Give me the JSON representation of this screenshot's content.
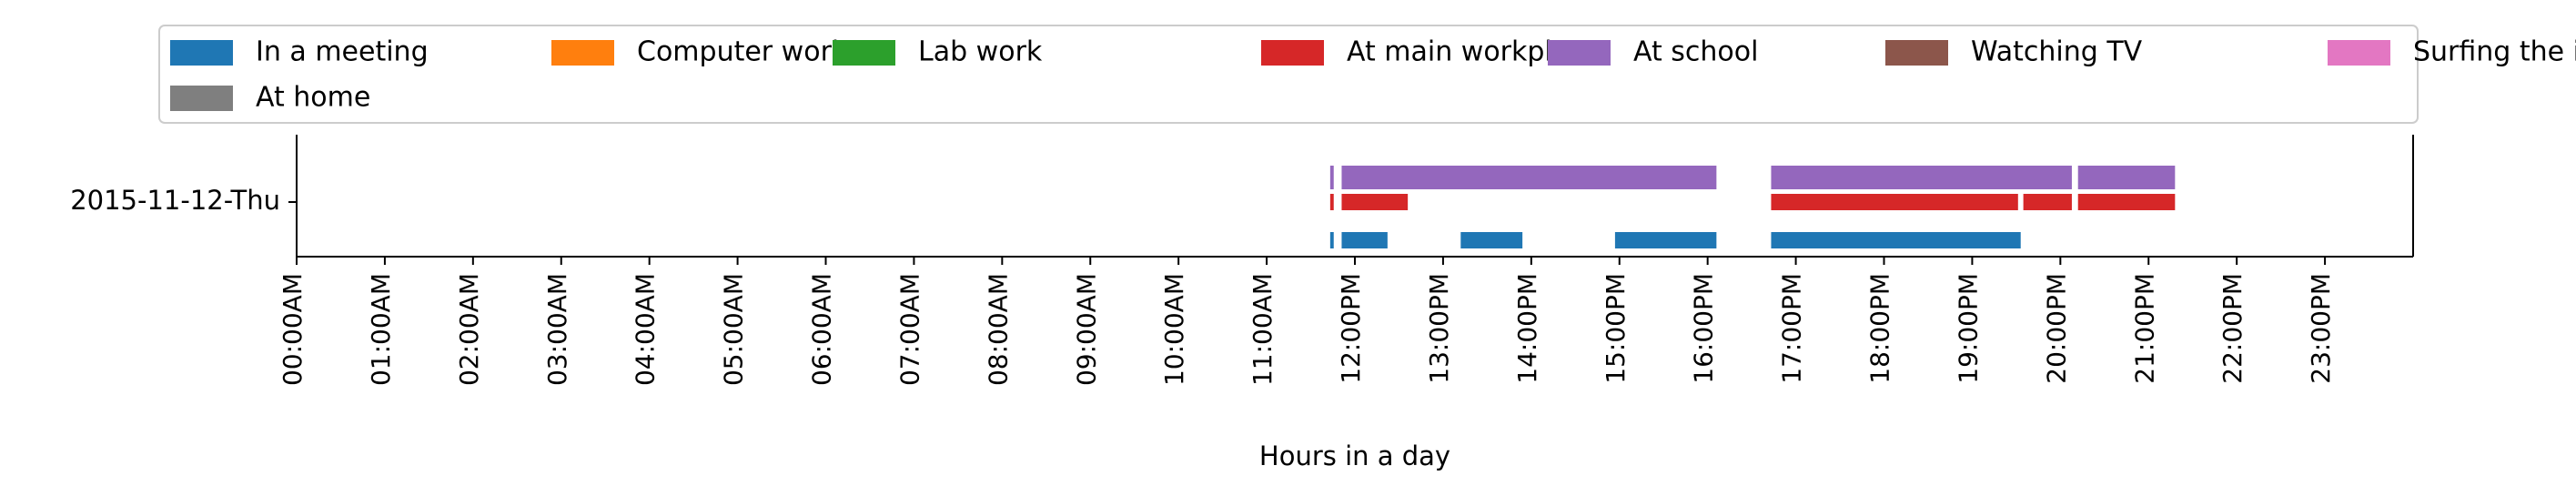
{
  "chart_data": {
    "type": "bar",
    "subtype": "activity-timeline",
    "title": "",
    "xlabel": "Hours in a day",
    "ylabel": "",
    "xlim": [
      0,
      24
    ],
    "grid": false,
    "legend_position": "top",
    "legend_columns": 7,
    "row_label": "2015-11-12-Thu",
    "x_tick_labels": [
      "00:00AM",
      "01:00AM",
      "02:00AM",
      "03:00AM",
      "04:00AM",
      "05:00AM",
      "06:00AM",
      "07:00AM",
      "08:00AM",
      "09:00AM",
      "10:00AM",
      "11:00AM",
      "12:00PM",
      "13:00PM",
      "14:00PM",
      "15:00PM",
      "16:00PM",
      "17:00PM",
      "18:00PM",
      "19:00PM",
      "20:00PM",
      "21:00PM",
      "22:00PM",
      "23:00PM"
    ],
    "series": [
      {
        "name": "In a meeting",
        "color": "#1f77b4",
        "lane": 0,
        "intervals": [
          [
            11.72,
            11.76
          ],
          [
            11.85,
            12.37
          ],
          [
            13.2,
            13.9
          ],
          [
            14.95,
            16.1
          ],
          [
            16.72,
            19.55
          ]
        ]
      },
      {
        "name": "Computer work",
        "color": "#ff7f0e",
        "lane": 1,
        "intervals": []
      },
      {
        "name": "Lab work",
        "color": "#2ca02c",
        "lane": 1,
        "intervals": []
      },
      {
        "name": "At main workplace",
        "color": "#d62728",
        "lane": 1,
        "intervals": [
          [
            11.72,
            11.76
          ],
          [
            11.85,
            12.6
          ],
          [
            16.72,
            19.52
          ],
          [
            19.58,
            20.13
          ],
          [
            20.2,
            21.3
          ]
        ]
      },
      {
        "name": "At school",
        "color": "#9467bd",
        "lane": 2,
        "intervals": [
          [
            11.72,
            11.76
          ],
          [
            11.85,
            16.1
          ],
          [
            16.72,
            20.13
          ],
          [
            20.2,
            21.3
          ]
        ]
      },
      {
        "name": "Watching TV",
        "color": "#8c564b",
        "lane": 2,
        "intervals": []
      },
      {
        "name": "Surfing the internet",
        "color": "#e377c2",
        "lane": 2,
        "intervals": []
      },
      {
        "name": "At home",
        "color": "#7f7f7f",
        "lane": 2,
        "intervals": []
      }
    ]
  }
}
